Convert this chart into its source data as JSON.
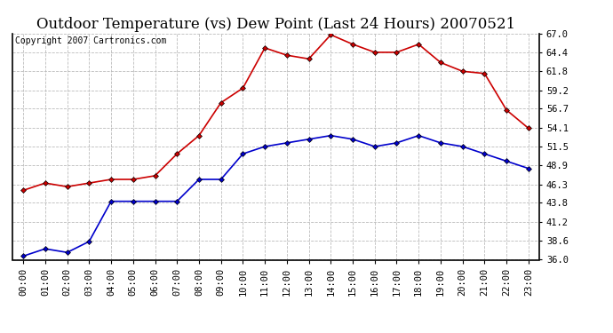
{
  "title": "Outdoor Temperature (vs) Dew Point (Last 24 Hours) 20070521",
  "copyright_text": "Copyright 2007 Cartronics.com",
  "x_labels": [
    "00:00",
    "01:00",
    "02:00",
    "03:00",
    "04:00",
    "05:00",
    "06:00",
    "07:00",
    "08:00",
    "09:00",
    "10:00",
    "11:00",
    "12:00",
    "13:00",
    "14:00",
    "15:00",
    "16:00",
    "17:00",
    "18:00",
    "19:00",
    "20:00",
    "21:00",
    "22:00",
    "23:00"
  ],
  "temp_data": [
    45.5,
    46.5,
    46.0,
    46.5,
    47.0,
    47.0,
    47.5,
    50.5,
    53.0,
    57.5,
    59.5,
    65.0,
    64.0,
    63.5,
    66.8,
    65.5,
    64.4,
    64.4,
    65.5,
    63.0,
    61.8,
    61.5,
    56.5,
    54.0
  ],
  "dew_data": [
    36.5,
    37.5,
    37.0,
    38.5,
    44.0,
    44.0,
    44.0,
    44.0,
    47.0,
    47.0,
    50.5,
    51.5,
    52.0,
    52.5,
    53.0,
    52.5,
    51.5,
    52.0,
    53.0,
    52.0,
    51.5,
    50.5,
    49.5,
    48.5
  ],
  "temp_color": "#cc0000",
  "dew_color": "#0000cc",
  "background_color": "#ffffff",
  "plot_bg_color": "#ffffff",
  "grid_color": "#bbbbbb",
  "ylim": [
    36.0,
    67.0
  ],
  "yticks": [
    36.0,
    38.6,
    41.2,
    43.8,
    46.3,
    48.9,
    51.5,
    54.1,
    56.7,
    59.2,
    61.8,
    64.4,
    67.0
  ],
  "title_fontsize": 12,
  "copyright_fontsize": 7,
  "tick_fontsize": 7.5,
  "marker": "D",
  "marker_size": 3,
  "line_width": 1.2
}
